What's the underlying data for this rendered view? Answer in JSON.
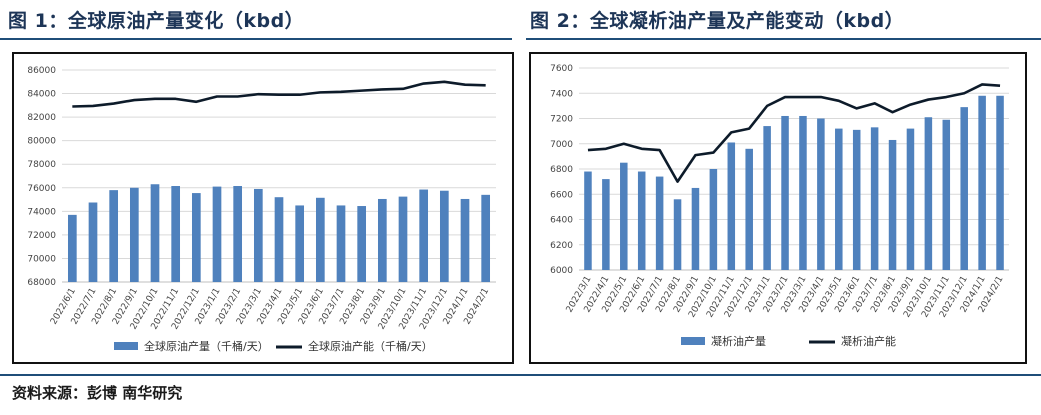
{
  "figures": {
    "left_title": "图 1：全球原油产量变化（kbd）",
    "right_title": "图 2：全球凝析油产量及产能变动（kbd）"
  },
  "source": "资料来源：彭博 南华研究",
  "chart_data": [
    {
      "type": "bar",
      "title": "",
      "categories": [
        "2022/6/1",
        "2022/7/1",
        "2022/8/1",
        "2022/9/1",
        "2022/10/1",
        "2022/11/1",
        "2022/12/1",
        "2023/1/1",
        "2023/2/1",
        "2023/3/1",
        "2023/4/1",
        "2023/5/1",
        "2023/6/1",
        "2023/7/1",
        "2023/8/1",
        "2023/9/1",
        "2023/10/1",
        "2023/11/1",
        "2023/12/1",
        "2024/1/1",
        "2024/2/1"
      ],
      "series": [
        {
          "name": "全球原油产量（千桶/天）",
          "type": "bar",
          "color": "#4f81bd",
          "values": [
            73700,
            74750,
            75800,
            76000,
            76300,
            76150,
            75550,
            76100,
            76150,
            75900,
            75200,
            74500,
            75150,
            74500,
            74450,
            75050,
            75250,
            75850,
            75750,
            75050,
            75400
          ]
        },
        {
          "name": "全球原油产能（千桶/天）",
          "type": "line",
          "color": "#0d1b2a",
          "values": [
            82900,
            82950,
            83150,
            83450,
            83550,
            83550,
            83300,
            83750,
            83750,
            83950,
            83900,
            83900,
            84100,
            84150,
            84250,
            84350,
            84400,
            84850,
            85000,
            84750,
            84700
          ]
        }
      ],
      "ylim": [
        68000,
        86000
      ],
      "yticks": [
        68000,
        70000,
        72000,
        74000,
        76000,
        78000,
        80000,
        82000,
        84000,
        86000
      ],
      "grid": true,
      "legend": "bottom"
    },
    {
      "type": "bar",
      "title": "",
      "categories": [
        "2022/3/1",
        "2022/4/1",
        "2022/5/1",
        "2022/6/1",
        "2022/7/1",
        "2022/8/1",
        "2022/9/1",
        "2022/10/1",
        "2022/11/1",
        "2022/12/1",
        "2023/1/1",
        "2023/2/1",
        "2023/3/1",
        "2023/4/1",
        "2023/5/1",
        "2023/6/1",
        "2023/7/1",
        "2023/8/1",
        "2023/9/1",
        "2023/10/1",
        "2023/11/1",
        "2023/12/1",
        "2024/1/1",
        "2024/2/1"
      ],
      "series": [
        {
          "name": "凝析油产量",
          "type": "bar",
          "color": "#4f81bd",
          "values": [
            6780,
            6720,
            6850,
            6780,
            6740,
            6560,
            6650,
            6800,
            7010,
            6960,
            7140,
            7220,
            7220,
            7200,
            7120,
            7110,
            7130,
            7030,
            7120,
            7210,
            7190,
            7290,
            7380,
            7380
          ]
        },
        {
          "name": "凝析油产能",
          "type": "line",
          "color": "#0d1b2a",
          "values": [
            6950,
            6960,
            7000,
            6960,
            6950,
            6700,
            6910,
            6930,
            7090,
            7120,
            7300,
            7370,
            7370,
            7370,
            7340,
            7280,
            7320,
            7250,
            7310,
            7350,
            7370,
            7400,
            7470,
            7460
          ]
        }
      ],
      "ylim": [
        6000,
        7600
      ],
      "yticks": [
        6000,
        6200,
        6400,
        6600,
        6800,
        7000,
        7200,
        7400,
        7600
      ],
      "grid": true,
      "legend": "bottom"
    }
  ]
}
